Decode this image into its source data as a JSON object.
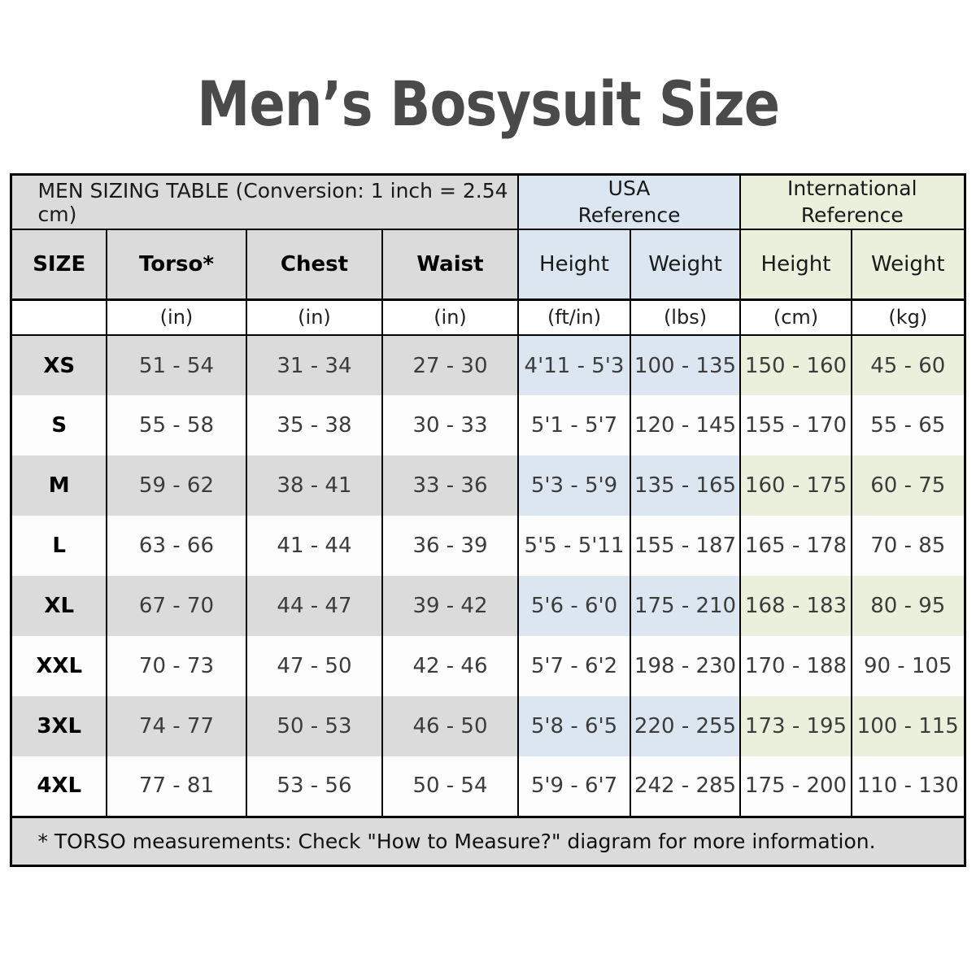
{
  "title": "Men’s Bosysuit Size",
  "colors": {
    "gray": "#dbdbdb",
    "blue": "#dce6f1",
    "green": "#ebf0dc",
    "row-white": "#fdfdfd",
    "line": "#000000",
    "text-dark": "#3c3c3c",
    "title": "#4a4a4a"
  },
  "table": {
    "group_header": {
      "main": "MEN SIZING TABLE (Conversion: 1 inch = 2.54 cm)",
      "usa_line1": "USA",
      "usa_line2": "Reference",
      "intl_line1": "International",
      "intl_line2": "Reference"
    },
    "column_headers": [
      "SIZE",
      "Torso*",
      "Chest",
      "Waist",
      "Height",
      "Weight",
      "Height",
      "Weight"
    ],
    "units": [
      "",
      "(in)",
      "(in)",
      "(in)",
      "(ft/in)",
      "(lbs)",
      "(cm)",
      "(kg)"
    ],
    "footnote": "* TORSO measurements: Check \"How to Measure?\" diagram for more information."
  },
  "chart_data": {
    "type": "table",
    "title": "Men’s Bosysuit Size",
    "group_columns": [
      "MEN SIZING TABLE (Conversion: 1 inch = 2.54 cm)",
      "USA Reference",
      "International Reference"
    ],
    "columns": [
      "SIZE",
      "Torso* (in)",
      "Chest (in)",
      "Waist (in)",
      "USA Height (ft/in)",
      "USA Weight (lbs)",
      "International Height (cm)",
      "International Weight (kg)"
    ],
    "rows": [
      [
        "XS",
        "51 - 54",
        "31 - 34",
        "27 - 30",
        "4'11 - 5'3",
        "100 - 135",
        "150 - 160",
        "45 - 60"
      ],
      [
        "S",
        "55 - 58",
        "35 - 38",
        "30 - 33",
        "5'1 - 5'7",
        "120 - 145",
        "155 - 170",
        "55 - 65"
      ],
      [
        "M",
        "59 - 62",
        "38 - 41",
        "33 - 36",
        "5'3 - 5'9",
        "135 - 165",
        "160 - 175",
        "60 - 75"
      ],
      [
        "L",
        "63 - 66",
        "41 - 44",
        "36 - 39",
        "5'5 - 5'11",
        "155 - 187",
        "165 - 178",
        "70 - 85"
      ],
      [
        "XL",
        "67 - 70",
        "44 - 47",
        "39 - 42",
        "5'6 - 6'0",
        "175 - 210",
        "168 - 183",
        "80 - 95"
      ],
      [
        "XXL",
        "70 - 73",
        "47 - 50",
        "42 - 46",
        "5'7 - 6'2",
        "198 - 230",
        "170 - 188",
        "90 - 105"
      ],
      [
        "3XL",
        "74 - 77",
        "50 - 53",
        "46 - 50",
        "5'8 - 6'5",
        "220 - 255",
        "173 - 195",
        "100 - 115"
      ],
      [
        "4XL",
        "77 - 81",
        "53 - 56",
        "50 - 54",
        "5'9 - 6'7",
        "242 - 285",
        "175 - 200",
        "110 - 130"
      ]
    ],
    "note": "* TORSO measurements: Check \"How to Measure?\" diagram for more information."
  }
}
